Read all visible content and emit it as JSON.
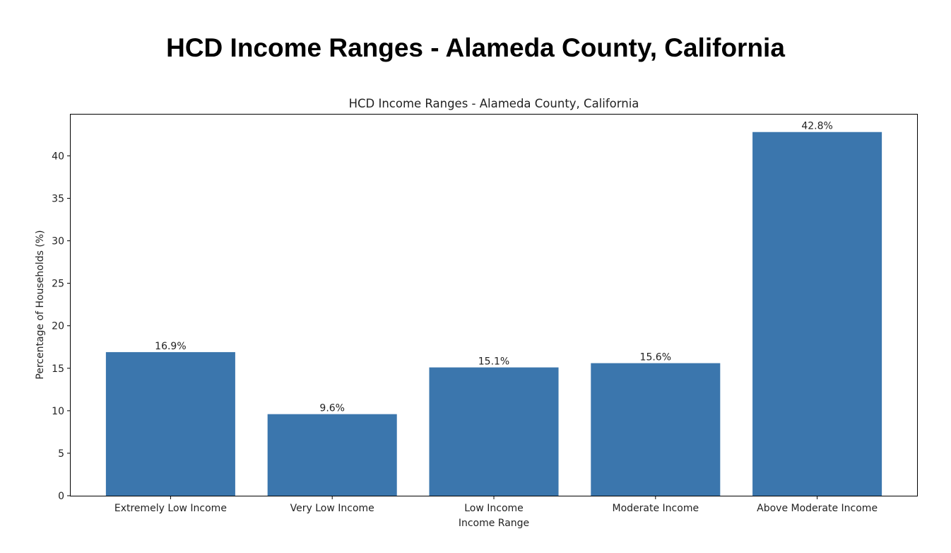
{
  "page": {
    "heading": "HCD Income Ranges - Alameda County, California"
  },
  "chart_data": {
    "type": "bar",
    "title": "HCD Income Ranges - Alameda County, California",
    "xlabel": "Income Range",
    "ylabel": "Percentage of Households (%)",
    "categories": [
      "Extremely Low Income",
      "Very Low Income",
      "Low Income",
      "Moderate Income",
      "Above Moderate Income"
    ],
    "values": [
      16.9,
      9.6,
      15.1,
      15.6,
      42.8
    ],
    "data_labels": [
      "16.9%",
      "9.6%",
      "15.1%",
      "15.6%",
      "42.8%"
    ],
    "ylim": [
      0,
      44.94
    ],
    "yticks": [
      0,
      5,
      10,
      15,
      20,
      25,
      30,
      35,
      40
    ],
    "bar_color": "#3b76ad",
    "grid": false,
    "legend": "none"
  }
}
